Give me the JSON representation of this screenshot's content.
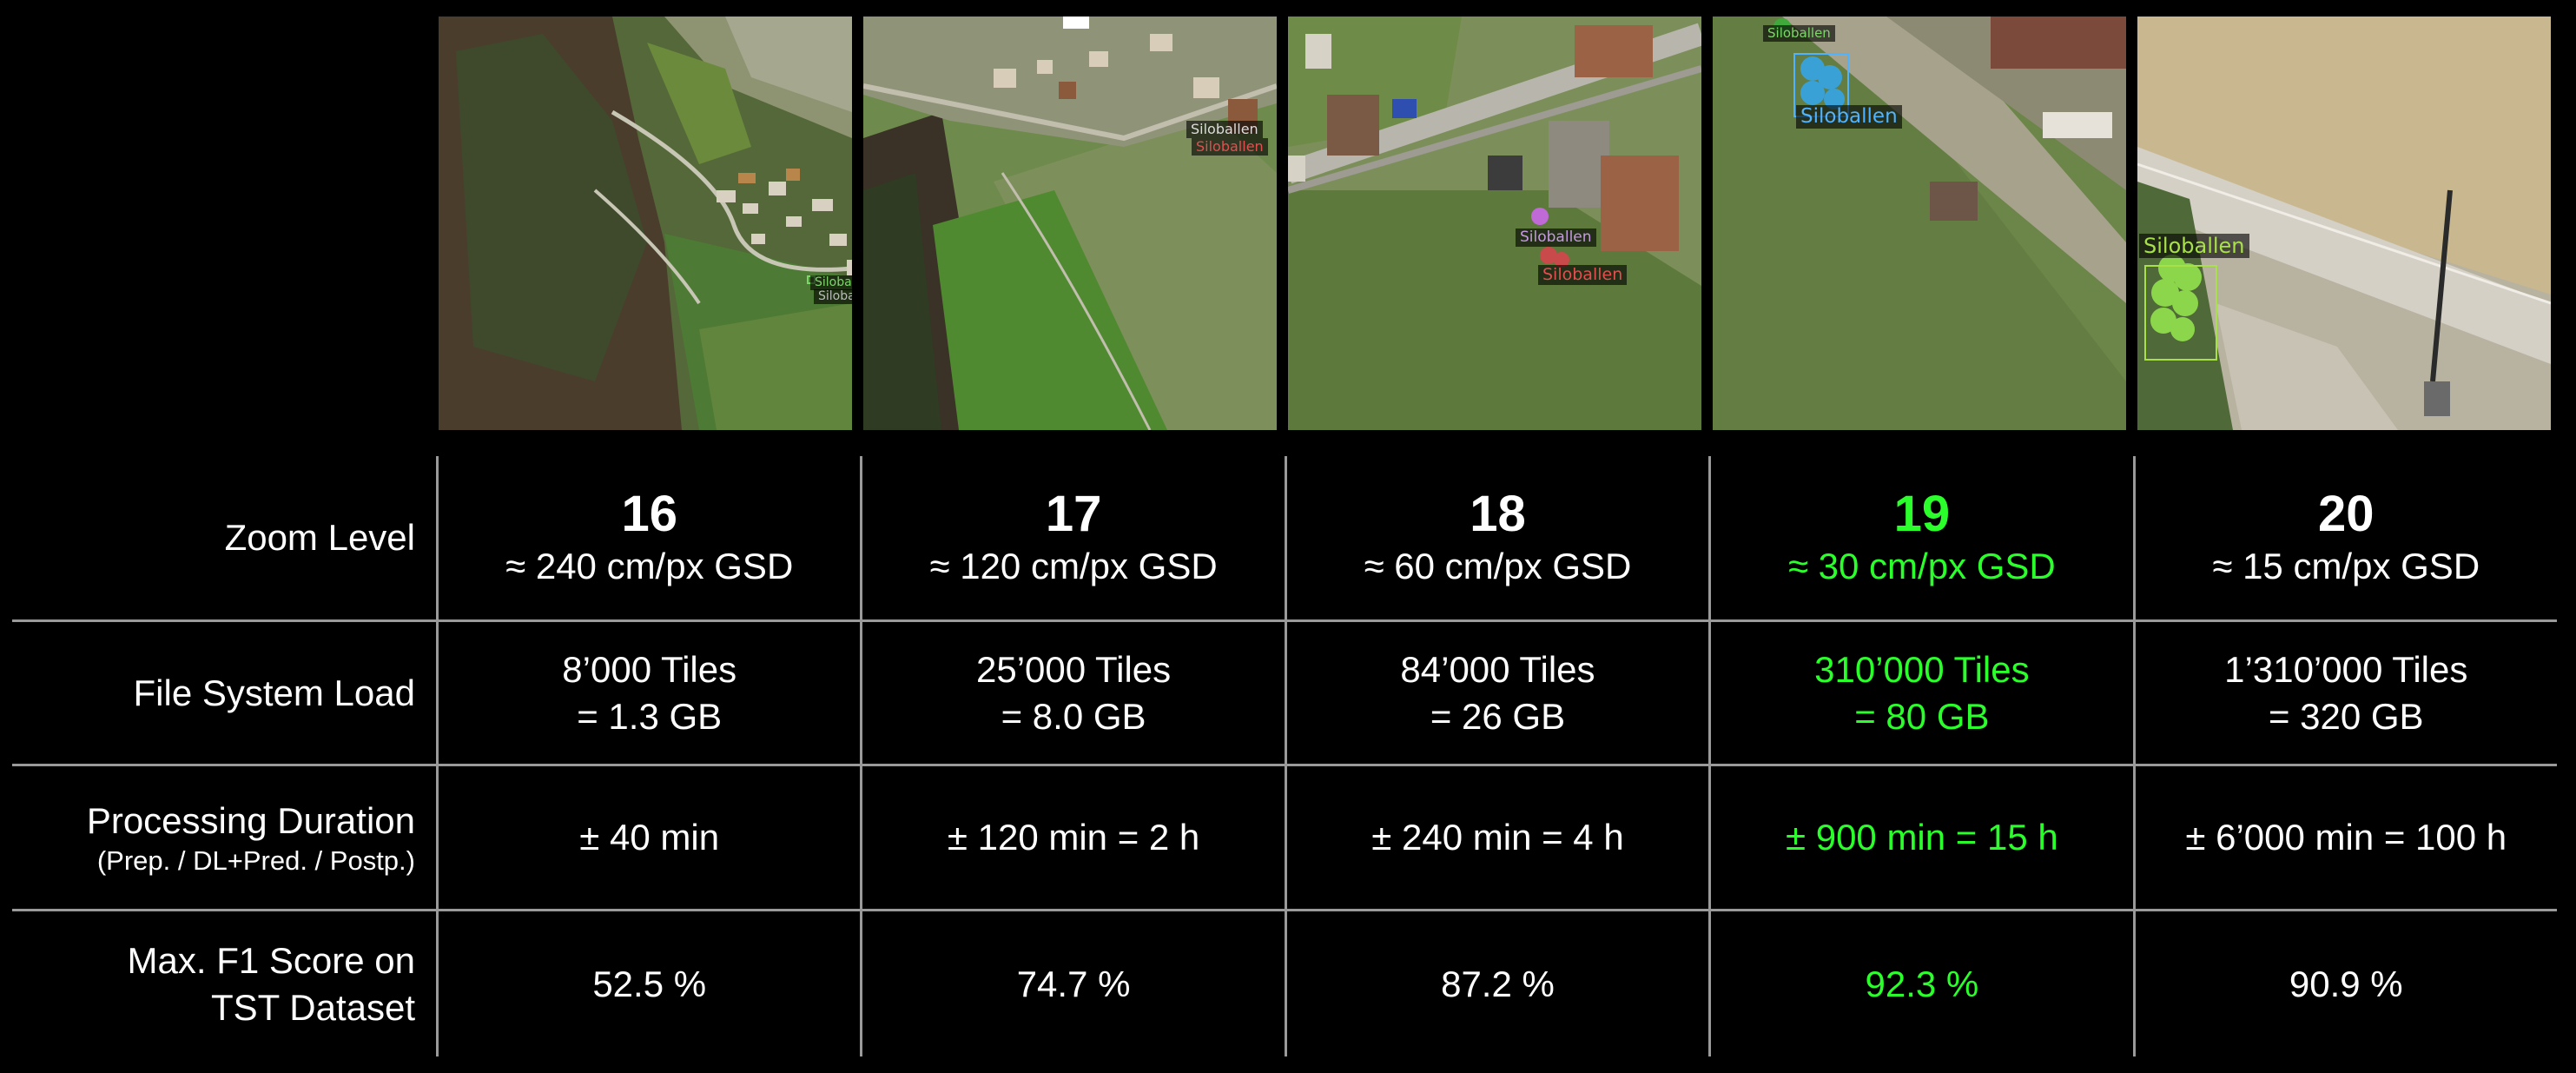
{
  "tiles": [
    {
      "zoom": "16",
      "labels": [
        {
          "text": "Silobal",
          "color": "#7dd66a"
        },
        {
          "text": "Siloba",
          "color": "#bbbbbb"
        }
      ]
    },
    {
      "zoom": "17",
      "labels": [
        {
          "text": "Siloballen",
          "color": "#dddddd"
        },
        {
          "text": "Siloballen",
          "color": "#e05050"
        }
      ]
    },
    {
      "zoom": "18",
      "labels": [
        {
          "text": "Siloballen",
          "color": "#c59ae0"
        },
        {
          "text": "Siloballen",
          "color": "#e05050"
        }
      ]
    },
    {
      "zoom": "19",
      "labels": [
        {
          "text": "Siloballen",
          "color": "#7dd66a"
        },
        {
          "text": "Siloballen",
          "color": "#4fb3ff"
        }
      ]
    },
    {
      "zoom": "20",
      "labels": [
        {
          "text": "Siloballen",
          "color": "#a8e04a"
        }
      ]
    }
  ],
  "table": {
    "row_headers": {
      "zoom_level": "Zoom Level",
      "file_system_load": "File System Load",
      "processing_duration": "Processing Duration",
      "processing_duration_sub": "(Prep. / DL+Pred. / Postp.)",
      "f1_line1": "Max. F1 Score on",
      "f1_line2": "TST Dataset"
    },
    "columns": [
      {
        "zoom": "16",
        "gsd": "≈ 240 cm/px GSD",
        "tiles": "8’000 Tiles",
        "size": "= 1.3 GB",
        "duration": "± 40 min",
        "f1": "52.5 %"
      },
      {
        "zoom": "17",
        "gsd": "≈ 120 cm/px GSD",
        "tiles": "25’000 Tiles",
        "size": "= 8.0 GB",
        "duration": "± 120 min = 2 h",
        "f1": "74.7 %"
      },
      {
        "zoom": "18",
        "gsd": "≈ 60 cm/px GSD",
        "tiles": "84’000 Tiles",
        "size": "= 26 GB",
        "duration": "± 240 min = 4 h",
        "f1": "87.2 %"
      },
      {
        "zoom": "19",
        "gsd": "≈ 30 cm/px GSD",
        "tiles": "310’000 Tiles",
        "size": "= 80 GB",
        "duration": "± 900 min = 15 h",
        "f1": "92.3 %",
        "highlight": true
      },
      {
        "zoom": "20",
        "gsd": "≈ 15 cm/px GSD",
        "tiles": "1’310’000 Tiles",
        "size": "= 320 GB",
        "duration": "± 6’000 min = 100 h",
        "f1": "90.9 %"
      }
    ]
  },
  "colors": {
    "background": "#000000",
    "text": "#ffffff",
    "highlight": "#2bff2b",
    "grid_line": "#9a9a9a"
  }
}
